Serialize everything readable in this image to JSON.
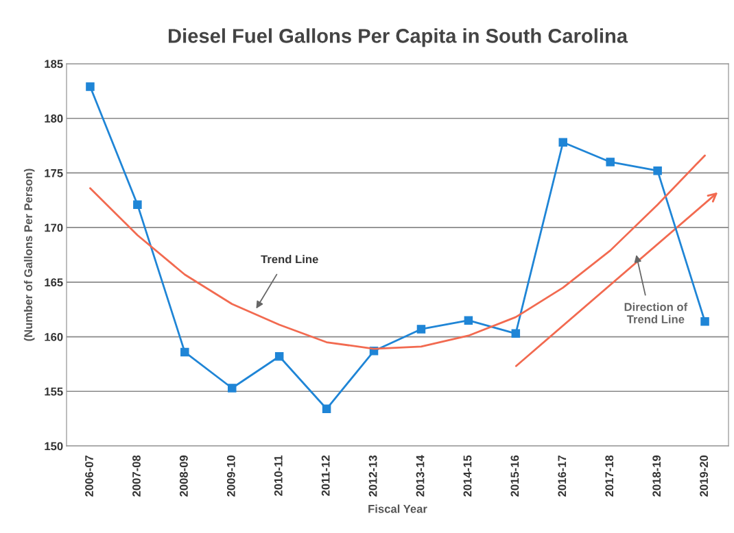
{
  "chart_data": {
    "type": "line",
    "title": "Diesel Fuel Gallons Per Capita in South Carolina",
    "xlabel": "Fiscal Year",
    "ylabel": "(Number of Gallons Per Person)",
    "categories": [
      "2006-07",
      "2007-08",
      "2008-09",
      "2009-10",
      "2010-11",
      "2011-12",
      "2012-13",
      "2013-14",
      "2014-15",
      "2015-16",
      "2016-17",
      "2017-18",
      "2018-19",
      "2019-20"
    ],
    "series": [
      {
        "color": "#1f85d6",
        "marker": "square",
        "values": [
          182.9,
          172.1,
          158.6,
          155.3,
          158.2,
          153.4,
          158.7,
          160.7,
          161.5,
          160.3,
          177.8,
          176.0,
          175.2,
          161.4
        ]
      },
      {
        "color": "#f26a50",
        "marker": "none",
        "values": [
          173.6,
          169.3,
          165.7,
          163.0,
          161.1,
          159.5,
          158.9,
          159.1,
          160.1,
          161.8,
          164.5,
          167.9,
          172.1,
          176.6
        ]
      }
    ],
    "annotations": [
      "Trend Line",
      "Direction of Trend Line"
    ],
    "ylim": [
      150,
      185
    ],
    "yticks": [
      150,
      155,
      160,
      165,
      170,
      175,
      180,
      185
    ],
    "grid": "y",
    "legend": false
  }
}
